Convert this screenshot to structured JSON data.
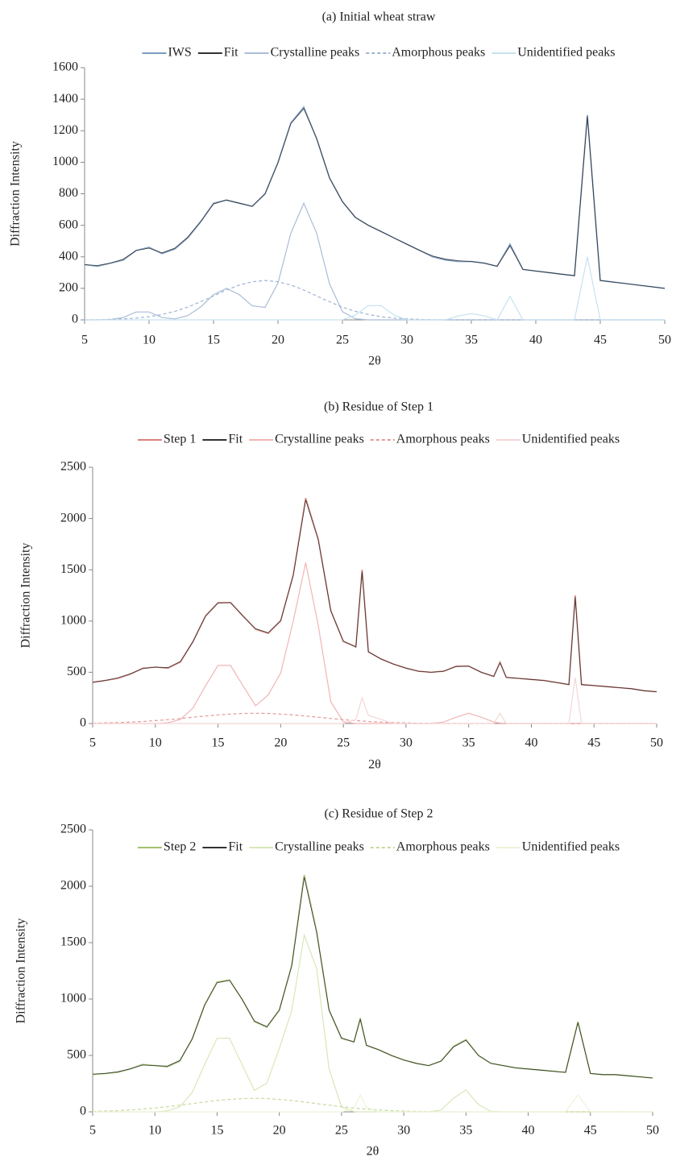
{
  "chart_data": [
    {
      "type": "line",
      "title": "(a) Initial wheat straw",
      "xlabel": "2θ",
      "ylabel": "Diffraction Intensity",
      "legend": "top",
      "xlim": [
        5,
        50
      ],
      "ylim": [
        0,
        1600
      ],
      "xticks": [
        5,
        10,
        15,
        20,
        25,
        30,
        35,
        40,
        45,
        50
      ],
      "yticks": [
        0,
        200,
        400,
        600,
        800,
        1000,
        1200,
        1400,
        1600
      ],
      "x": [
        5,
        6,
        7,
        8,
        9,
        10,
        11,
        12,
        13,
        14,
        15,
        16,
        17,
        18,
        19,
        20,
        21,
        22,
        23,
        24,
        25,
        26,
        27,
        28,
        29,
        30,
        31,
        32,
        33,
        34,
        35,
        36,
        37,
        38,
        39,
        40,
        41,
        42,
        43,
        44,
        45,
        46,
        47,
        48,
        49,
        50
      ],
      "series": [
        {
          "name": "IWS",
          "color": "#7b9cc4",
          "style": "solid",
          "values": [
            350,
            340,
            360,
            380,
            440,
            460,
            420,
            450,
            520,
            620,
            740,
            760,
            740,
            720,
            800,
            1000,
            1250,
            1350,
            1150,
            900,
            750,
            650,
            600,
            560,
            520,
            480,
            440,
            400,
            380,
            370,
            370,
            360,
            340,
            480,
            320,
            310,
            300,
            290,
            280,
            1300,
            250,
            240,
            230,
            220,
            210,
            200
          ]
        },
        {
          "name": "Fit",
          "color": "#333333",
          "style": "solid",
          "values": [
            350,
            345,
            360,
            385,
            440,
            455,
            425,
            455,
            525,
            625,
            735,
            760,
            740,
            720,
            800,
            995,
            1245,
            1340,
            1150,
            900,
            750,
            650,
            600,
            560,
            520,
            480,
            440,
            405,
            385,
            375,
            370,
            360,
            340,
            470,
            320,
            310,
            300,
            290,
            280,
            1290,
            250,
            240,
            230,
            220,
            210,
            200
          ]
        },
        {
          "name": "Crystalline peaks",
          "color": "#a9bcd8",
          "style": "solid",
          "values": [
            0,
            0,
            2,
            15,
            50,
            50,
            15,
            6,
            27,
            82,
            160,
            200,
            160,
            89,
            79,
            234,
            550,
            740,
            550,
            228,
            52,
            7,
            0,
            0,
            0,
            0,
            0,
            0,
            0,
            0,
            0,
            0,
            0,
            0,
            0,
            0,
            0,
            0,
            0,
            0,
            0,
            0,
            0,
            0,
            0,
            0
          ]
        },
        {
          "name": "Amorphous peaks",
          "color": "#9fb3d2",
          "style": "dashed",
          "values": [
            0,
            1,
            3,
            6,
            11,
            20,
            34,
            54,
            81,
            115,
            152,
            189,
            221,
            242,
            250,
            242,
            221,
            189,
            152,
            115,
            81,
            54,
            34,
            20,
            11,
            6,
            3,
            1,
            0,
            0,
            0,
            0,
            0,
            0,
            0,
            0,
            0,
            0,
            0,
            0,
            0,
            0,
            0,
            0,
            0,
            0
          ]
        },
        {
          "name": "Unidentified peaks",
          "color": "#c6e2ef",
          "style": "solid",
          "values": [
            0,
            0,
            0,
            0,
            0,
            0,
            0,
            0,
            0,
            0,
            0,
            0,
            0,
            0,
            0,
            0,
            0,
            0,
            0,
            0,
            0,
            30,
            90,
            90,
            30,
            0,
            0,
            0,
            0,
            25,
            40,
            25,
            0,
            150,
            0,
            0,
            0,
            0,
            0,
            400,
            0,
            0,
            0,
            0,
            0,
            0
          ]
        }
      ]
    },
    {
      "type": "line",
      "title": "(b) Residue of Step 1",
      "xlabel": "2θ",
      "ylabel": "Diffraction Intensity",
      "legend": "top",
      "xlim": [
        5,
        50
      ],
      "ylim": [
        0,
        2500
      ],
      "xticks": [
        5,
        10,
        15,
        20,
        25,
        30,
        35,
        40,
        45,
        50
      ],
      "yticks": [
        0,
        500,
        1000,
        1500,
        2000,
        2500
      ],
      "x": [
        5,
        6,
        7,
        8,
        9,
        10,
        11,
        12,
        13,
        14,
        15,
        16,
        17,
        18,
        19,
        20,
        21,
        22,
        23,
        24,
        25,
        26,
        26.5,
        27,
        28,
        29,
        30,
        31,
        32,
        33,
        34,
        35,
        36,
        37,
        37.5,
        38,
        39,
        40,
        41,
        42,
        43,
        43.5,
        44,
        45,
        46,
        47,
        48,
        49,
        50
      ],
      "series": [
        {
          "name": "Step 1",
          "color": "#d9827a",
          "style": "solid",
          "values": [
            400,
            420,
            440,
            480,
            540,
            550,
            540,
            600,
            800,
            1050,
            1180,
            1180,
            1050,
            920,
            880,
            1000,
            1450,
            2200,
            1800,
            1100,
            800,
            750,
            1500,
            700,
            630,
            580,
            540,
            510,
            500,
            510,
            560,
            560,
            500,
            460,
            600,
            450,
            440,
            430,
            420,
            400,
            380,
            1250,
            380,
            370,
            360,
            350,
            340,
            320,
            310
          ]
        },
        {
          "name": "Fit",
          "color": "#333333",
          "style": "solid",
          "values": [
            405,
            420,
            445,
            485,
            535,
            550,
            545,
            605,
            795,
            1045,
            1175,
            1180,
            1045,
            925,
            885,
            1005,
            1440,
            2180,
            1790,
            1100,
            805,
            745,
            1480,
            700,
            630,
            580,
            540,
            510,
            500,
            510,
            555,
            560,
            500,
            460,
            590,
            450,
            440,
            430,
            420,
            400,
            380,
            1230,
            380,
            370,
            360,
            350,
            340,
            320,
            310
          ]
        },
        {
          "name": "Crystalline peaks",
          "color": "#f2b5b5",
          "style": "solid",
          "values": [
            0,
            0,
            0,
            0,
            0,
            0,
            7,
            40,
            150,
            367,
            567,
            567,
            367,
            173,
            278,
            491,
            998,
            1570,
            955,
            212,
            17,
            0,
            0,
            0,
            0,
            0,
            0,
            0,
            0,
            14,
            61,
            100,
            61,
            14,
            4,
            0,
            0,
            0,
            0,
            0,
            0,
            0,
            0,
            0,
            0,
            0,
            0,
            0,
            0
          ]
        },
        {
          "name": "Amorphous peaks",
          "color": "#e39a9a",
          "style": "dashed",
          "values": [
            3,
            6,
            9,
            14,
            20,
            28,
            38,
            49,
            61,
            73,
            84,
            92,
            98,
            100,
            98,
            92,
            84,
            73,
            61,
            49,
            38,
            28,
            24,
            20,
            14,
            9,
            6,
            3,
            2,
            0,
            0,
            0,
            0,
            0,
            0,
            0,
            0,
            0,
            0,
            0,
            0,
            0,
            0,
            0,
            0,
            0,
            0,
            0,
            0
          ]
        },
        {
          "name": "Unidentified peaks",
          "color": "#f5d6d6",
          "style": "solid",
          "values": [
            0,
            0,
            0,
            0,
            0,
            0,
            0,
            0,
            0,
            0,
            0,
            0,
            0,
            0,
            0,
            0,
            0,
            0,
            0,
            0,
            0,
            40,
            250,
            80,
            40,
            0,
            0,
            0,
            0,
            0,
            0,
            0,
            0,
            0,
            100,
            0,
            0,
            0,
            0,
            0,
            0,
            450,
            0,
            0,
            0,
            0,
            0,
            0,
            0
          ]
        }
      ]
    },
    {
      "type": "line",
      "title": "(c) Residue of Step 2",
      "xlabel": "2θ",
      "ylabel": "Diffraction Intensity",
      "legend": "top",
      "xlim": [
        5,
        50
      ],
      "ylim": [
        0,
        2500
      ],
      "xticks": [
        5,
        10,
        15,
        20,
        25,
        30,
        35,
        40,
        45,
        50
      ],
      "yticks": [
        0,
        500,
        1000,
        1500,
        2000,
        2500
      ],
      "x": [
        5,
        6,
        7,
        8,
        9,
        10,
        11,
        12,
        13,
        14,
        15,
        16,
        17,
        18,
        19,
        20,
        21,
        22,
        23,
        24,
        25,
        26,
        26.5,
        27,
        28,
        29,
        30,
        31,
        32,
        33,
        34,
        35,
        36,
        37,
        38,
        39,
        40,
        41,
        42,
        43,
        44,
        45,
        46,
        47,
        48,
        49,
        50
      ],
      "series": [
        {
          "name": "Step 2",
          "color": "#a3c16f",
          "style": "solid",
          "values": [
            330,
            340,
            350,
            380,
            420,
            410,
            400,
            450,
            650,
            950,
            1150,
            1170,
            1000,
            800,
            750,
            900,
            1300,
            2100,
            1600,
            900,
            650,
            620,
            830,
            590,
            550,
            500,
            460,
            430,
            410,
            450,
            580,
            640,
            500,
            430,
            410,
            390,
            380,
            370,
            360,
            350,
            800,
            340,
            330,
            330,
            320,
            310,
            300
          ]
        },
        {
          "name": "Fit",
          "color": "#333333",
          "style": "solid",
          "values": [
            335,
            340,
            355,
            380,
            415,
            410,
            405,
            455,
            645,
            945,
            1145,
            1165,
            1000,
            805,
            755,
            905,
            1295,
            2080,
            1590,
            905,
            655,
            620,
            820,
            590,
            550,
            500,
            460,
            430,
            410,
            450,
            575,
            635,
            500,
            430,
            410,
            390,
            380,
            370,
            360,
            350,
            790,
            340,
            330,
            330,
            320,
            310,
            300
          ]
        },
        {
          "name": "Crystalline peaks",
          "color": "#d9e7b8",
          "style": "solid",
          "values": [
            0,
            0,
            0,
            0,
            0,
            0,
            8,
            46,
            172,
            421,
            653,
            653,
            421,
            191,
            254,
            563,
            898,
            1568,
            1269,
            382,
            42,
            2,
            0,
            0,
            0,
            0,
            0,
            0,
            0,
            16,
            121,
            194,
            65,
            5,
            0,
            0,
            0,
            0,
            0,
            0,
            0,
            0,
            0,
            0,
            0,
            0,
            0
          ]
        },
        {
          "name": "Amorphous peaks",
          "color": "#c7da9e",
          "style": "dashed",
          "values": [
            4,
            7,
            11,
            17,
            24,
            34,
            46,
            59,
            73,
            88,
            101,
            110,
            118,
            120,
            118,
            110,
            101,
            88,
            73,
            59,
            46,
            34,
            29,
            24,
            17,
            11,
            7,
            4,
            2,
            0,
            0,
            0,
            0,
            0,
            0,
            0,
            0,
            0,
            0,
            0,
            0,
            0,
            0,
            0,
            0,
            0,
            0
          ]
        },
        {
          "name": "Unidentified peaks",
          "color": "#edf3da",
          "style": "solid",
          "values": [
            0,
            0,
            0,
            0,
            0,
            0,
            0,
            0,
            0,
            0,
            0,
            0,
            0,
            0,
            0,
            0,
            0,
            0,
            0,
            0,
            0,
            30,
            150,
            40,
            0,
            0,
            0,
            0,
            0,
            0,
            0,
            0,
            0,
            0,
            0,
            0,
            0,
            0,
            0,
            0,
            150,
            0,
            0,
            0,
            0,
            0,
            0
          ]
        }
      ]
    }
  ]
}
